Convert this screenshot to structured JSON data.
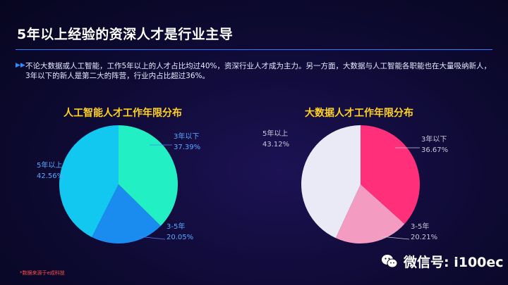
{
  "title": "5年以上经验的资深人才是行业主导",
  "intro": {
    "line1": "不论大数据或人工智能，工作5年以上的人才占比均过40%，资深行业人才成为主力。另一方面，大数据与人工智能各职能也在大量吸纳新人，",
    "line2": "3年以下的新人是第二大的阵营，行业内占比超过36%。"
  },
  "source_note": "*数据来源于e成科技",
  "watermark": "微信号: i100ec",
  "chart_data": [
    {
      "type": "pie",
      "title": "人工智能人才工作年限分布",
      "slices": [
        {
          "label": "3年以下",
          "value": 37.39,
          "display": "37.39%",
          "color": "#22f0c4"
        },
        {
          "label": "3-5年",
          "value": 20.05,
          "display": "20.05%",
          "color": "#1a8cf0"
        },
        {
          "label": "5年以上",
          "value": 42.56,
          "display": "42.56%",
          "color": "#12c8f0"
        }
      ],
      "label_color": "#5aa8ff",
      "leader_color": "#4d7fff"
    },
    {
      "type": "pie",
      "title": "大数据人才工作年限分布",
      "slices": [
        {
          "label": "3年以下",
          "value": 36.67,
          "display": "36.67%",
          "color": "#ff2f7a"
        },
        {
          "label": "3-5年",
          "value": 20.21,
          "display": "20.21%",
          "color": "#f39bc0"
        },
        {
          "label": "5年以上",
          "value": 43.12,
          "display": "43.12%",
          "color": "#eaeaf6"
        }
      ],
      "label_color": "#c7c7d9",
      "leader_color": "#c7c7d9"
    }
  ]
}
